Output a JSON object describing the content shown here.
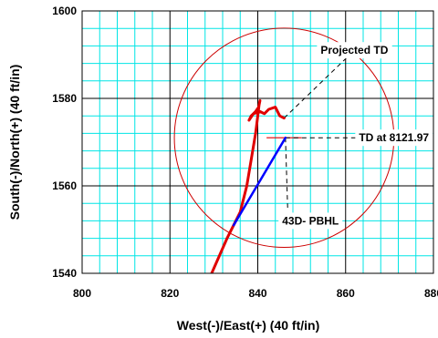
{
  "chart_data": {
    "type": "line",
    "title": "",
    "xlabel": "West(-)/East(+) (40 ft/in)",
    "ylabel": "South(-)/North(+) (40 ft/in)",
    "xlim": [
      800,
      880
    ],
    "ylim": [
      1540,
      1600
    ],
    "x_ticks": [
      "800",
      "820",
      "840",
      "860",
      "880"
    ],
    "y_ticks": [
      "1540",
      "1560",
      "1580",
      "1600"
    ],
    "grid": true,
    "minor_grid": true,
    "colors": {
      "grid_minor": "#00e5e5",
      "grid_major": "#000000",
      "well_path": "#e00000",
      "plan": "#0000ff",
      "target_circle": "#cc0000",
      "leader": "#000000"
    },
    "series": [
      {
        "name": "",
        "role": "actual",
        "x": [
          829.5,
          833,
          836,
          837.5,
          838.5,
          839.5,
          840,
          840.3,
          840.5,
          840.2,
          839.5,
          838.5,
          838,
          839,
          840.5,
          841.5,
          842.5,
          844,
          845,
          846
        ],
        "y": [
          1540,
          1548,
          1554,
          1560,
          1566,
          1572,
          1576,
          1578.5,
          1579.5,
          1578,
          1577,
          1576,
          1575,
          1576.5,
          1577,
          1576.5,
          1577.5,
          1578,
          1576,
          1575.5
        ]
      },
      {
        "name": "",
        "role": "plan",
        "x": [
          834.5,
          846.3
        ],
        "y": [
          1551,
          1571
        ]
      }
    ],
    "target_circle": {
      "cx": 846,
      "cy": 1571,
      "r": 25
    },
    "annotations": [
      {
        "text": "Projected TD",
        "x": 862,
        "y": 1591
      },
      {
        "text": "TD at 8121.97",
        "x": 871,
        "y": 1571
      },
      {
        "text": "43D- PBHL",
        "x": 852,
        "y": 1552
      }
    ]
  }
}
